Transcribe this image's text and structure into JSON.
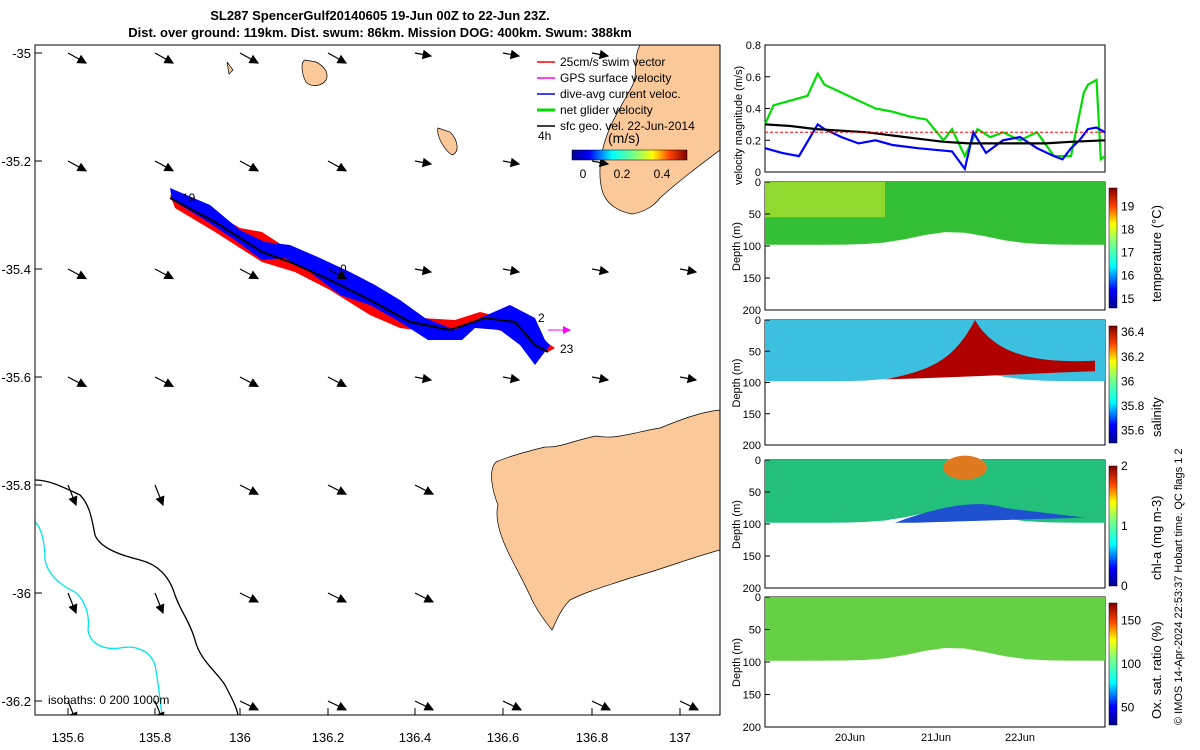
{
  "title_line1": "SL287 SpencerGulf20140605 19-Jun 00Z to 22-Jun 23Z.",
  "title_line2": "Dist. over ground: 119km. Dist. swum: 86km. Mission DOG: 400km. Swum: 388km",
  "footer": "© IMOS 14-Apr-2024 22:53:37 Hobart time. QC flags 1  2",
  "map": {
    "lon_ticks": [
      "135.6",
      "135.8",
      "136",
      "136.2",
      "136.4",
      "136.6",
      "136.8",
      "137"
    ],
    "lat_ticks": [
      "-35",
      "-35.2",
      "-35.4",
      "-35.6",
      "-35.8",
      "-36",
      "-36.2"
    ],
    "legend": [
      {
        "label": "25cm/s swim vector",
        "color": "#ff0000"
      },
      {
        "label": "GPS surface velocity",
        "color": "#ff00ff"
      },
      {
        "label": "dive-avg current veloc.",
        "color": "#0000ff"
      },
      {
        "label": "net glider velocity",
        "color": "#00dd00"
      },
      {
        "label": "sfc geo. vel. 22-Jun-2014",
        "color": "#000000"
      }
    ],
    "colorbar_title": "(m/s)",
    "colorbar_prefix": "4h",
    "colorbar_ticks": [
      "0",
      "0.2",
      "0.4"
    ],
    "isobath_label": "isobaths: 0   200  1000m",
    "track_labels": [
      "19",
      "0",
      "2",
      "23"
    ],
    "land_color": "#fbc999",
    "isobath_color": "#00e5ee"
  },
  "chart_data": [
    {
      "type": "line",
      "ylabel": "velocity magnitude (m/s)",
      "ylim": [
        0,
        0.8
      ],
      "yticks": [
        "0",
        "0.2",
        "0.4",
        "0.6",
        "0.8"
      ],
      "x_range_days": [
        19.0,
        23.0
      ],
      "series": [
        {
          "color": "#00dd00",
          "x": [
            19.0,
            19.1,
            19.3,
            19.5,
            19.62,
            19.7,
            19.9,
            20.1,
            20.3,
            20.5,
            20.7,
            20.9,
            21.1,
            21.2,
            21.35,
            21.5,
            21.65,
            21.8,
            22.0,
            22.2,
            22.4,
            22.6,
            22.75,
            22.8,
            22.9,
            22.95,
            23.0
          ],
          "values": [
            0.3,
            0.42,
            0.45,
            0.48,
            0.62,
            0.55,
            0.5,
            0.45,
            0.4,
            0.38,
            0.35,
            0.33,
            0.2,
            0.27,
            0.1,
            0.27,
            0.22,
            0.25,
            0.2,
            0.25,
            0.1,
            0.1,
            0.5,
            0.55,
            0.58,
            0.08,
            0.1
          ]
        },
        {
          "color": "#0000ff",
          "x": [
            19.0,
            19.2,
            19.4,
            19.62,
            19.7,
            19.9,
            20.1,
            20.3,
            20.5,
            20.8,
            21.0,
            21.2,
            21.35,
            21.45,
            21.6,
            21.8,
            22.0,
            22.2,
            22.4,
            22.5,
            22.6,
            22.7,
            22.8,
            22.9,
            23.0
          ],
          "values": [
            0.15,
            0.12,
            0.1,
            0.3,
            0.27,
            0.22,
            0.18,
            0.2,
            0.17,
            0.15,
            0.14,
            0.13,
            0.02,
            0.25,
            0.12,
            0.2,
            0.22,
            0.15,
            0.1,
            0.08,
            0.15,
            0.2,
            0.27,
            0.28,
            0.25
          ]
        },
        {
          "color": "#000000",
          "x": [
            19.0,
            19.3,
            19.6,
            19.9,
            20.2,
            20.5,
            20.8,
            21.1,
            21.4,
            21.7,
            22.0,
            22.3,
            22.6,
            23.0
          ],
          "values": [
            0.3,
            0.29,
            0.27,
            0.26,
            0.25,
            0.23,
            0.21,
            0.19,
            0.18,
            0.18,
            0.18,
            0.18,
            0.19,
            0.2
          ]
        },
        {
          "color": "#ff0000",
          "x": [
            19.0,
            23.0
          ],
          "values": [
            0.25,
            0.25
          ]
        }
      ]
    },
    {
      "type": "heatmap",
      "ylabel": "Depth (m)",
      "ylim": [
        0,
        200
      ],
      "yticks": [
        "0",
        "50",
        "100",
        "150",
        "200"
      ],
      "colorbar_label": "temperature (°C)",
      "colorbar_ticks": [
        "15",
        "16",
        "17",
        "18",
        "19"
      ],
      "clim": [
        14.6,
        19.8
      ]
    },
    {
      "type": "heatmap",
      "ylabel": "Depth (m)",
      "ylim": [
        0,
        200
      ],
      "yticks": [
        "0",
        "50",
        "100",
        "150",
        "200"
      ],
      "colorbar_label": "salinity",
      "colorbar_ticks": [
        "35.6",
        "35.8",
        "36",
        "36.2",
        "36.4"
      ],
      "clim": [
        35.5,
        36.45
      ]
    },
    {
      "type": "heatmap",
      "ylabel": "Depth (m)",
      "ylim": [
        0,
        200
      ],
      "yticks": [
        "0",
        "50",
        "100",
        "150",
        "200"
      ],
      "colorbar_label": "chl-a (mg m-3)",
      "colorbar_ticks": [
        "0",
        "1",
        "2"
      ],
      "clim": [
        0,
        2
      ]
    },
    {
      "type": "heatmap",
      "ylabel": "Depth (m)",
      "ylim": [
        0,
        200
      ],
      "yticks": [
        "0",
        "50",
        "100",
        "150",
        "200"
      ],
      "colorbar_label": "Ox. sat. ratio (%)",
      "colorbar_ticks": [
        "50",
        "100",
        "150"
      ],
      "clim": [
        30,
        170
      ]
    }
  ],
  "time_axis_labels": [
    "20Jun",
    "21Jun",
    "22Jun"
  ]
}
